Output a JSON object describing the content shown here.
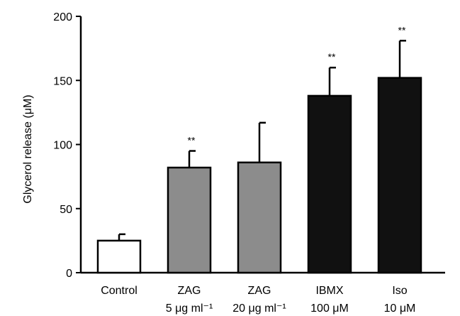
{
  "chart_data": {
    "type": "bar",
    "ylabel": "Glycerol release (μM)",
    "ylim": [
      0,
      200
    ],
    "yticks": [
      0,
      50,
      100,
      150,
      200
    ],
    "categories": [
      {
        "line1": "Control",
        "line2": ""
      },
      {
        "line1": "ZAG",
        "line2": "5 μg ml⁻¹"
      },
      {
        "line1": "ZAG",
        "line2": "20 μg ml⁻¹"
      },
      {
        "line1": "IBMX",
        "line2": "100 μM"
      },
      {
        "line1": "Iso",
        "line2": "10 μM"
      }
    ],
    "values": [
      25,
      82,
      86,
      138,
      152
    ],
    "errors": [
      5,
      13,
      31,
      22,
      29
    ],
    "significance": [
      "",
      "**",
      "",
      "**",
      "**"
    ],
    "bar_colors": [
      "#ffffff",
      "#8c8c8c",
      "#8c8c8c",
      "#111111",
      "#111111"
    ]
  }
}
